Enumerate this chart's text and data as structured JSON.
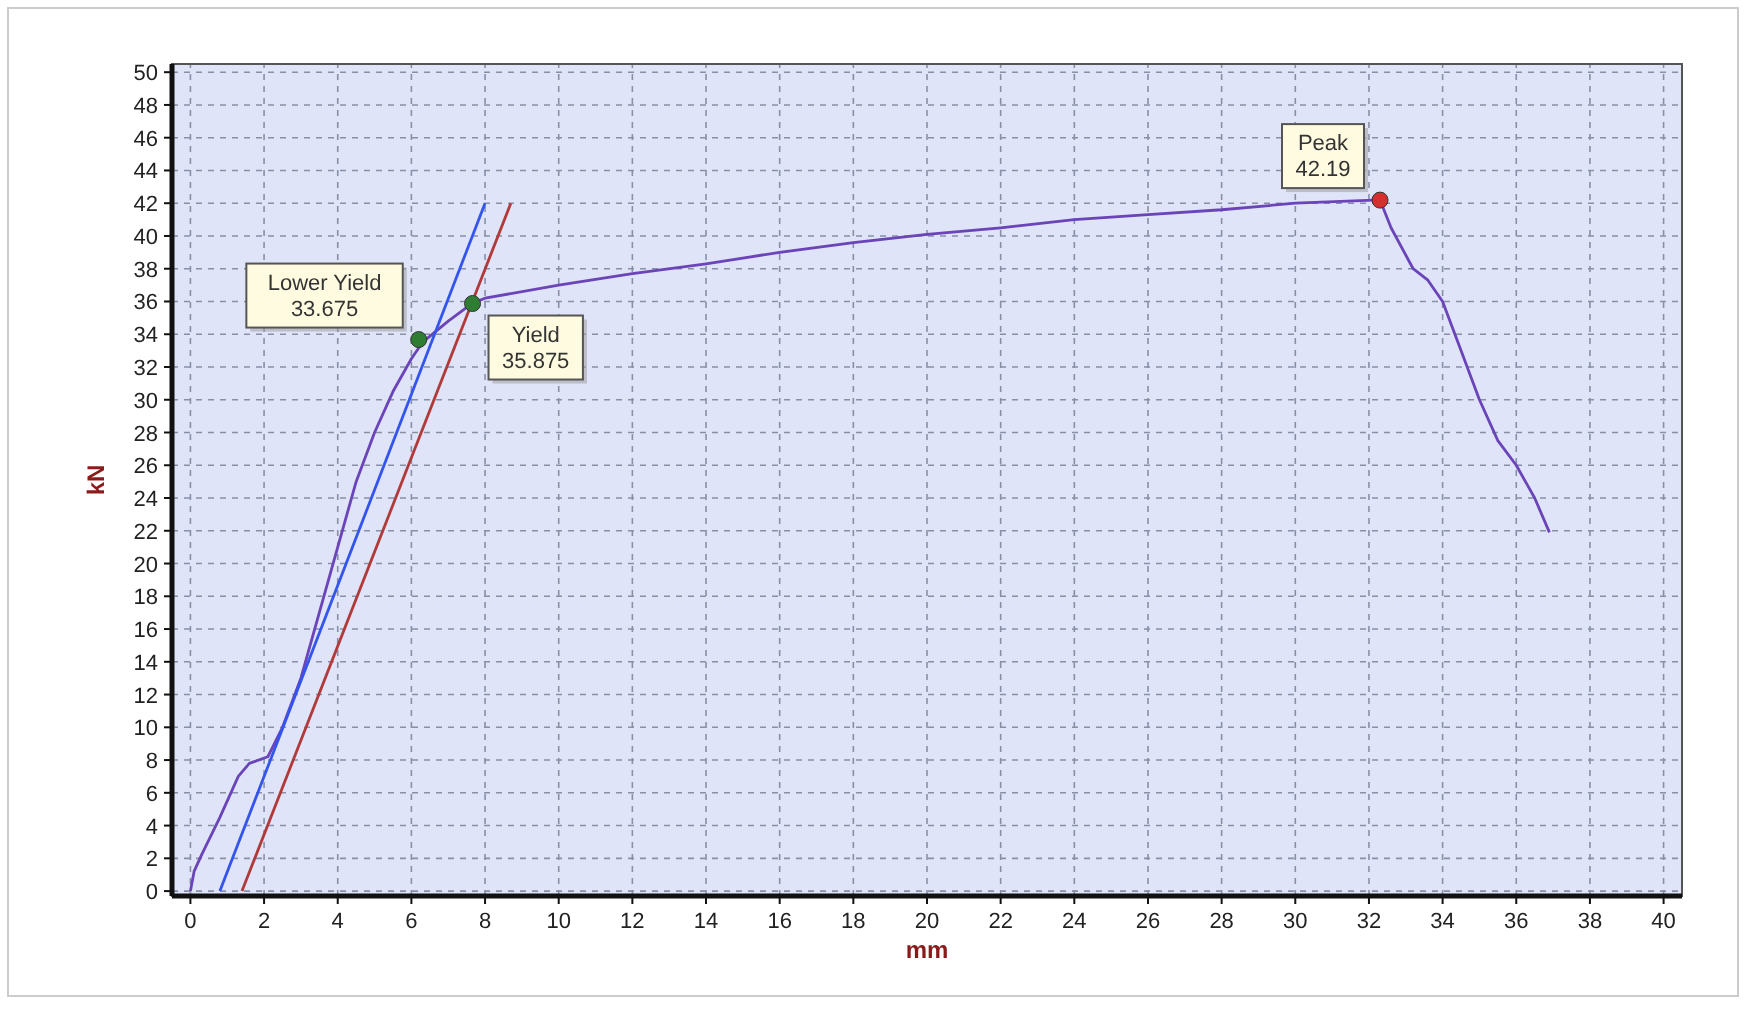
{
  "chart_data": {
    "type": "line",
    "xlabel": "mm",
    "ylabel": "kN",
    "xlim": [
      -0.5,
      40.5
    ],
    "ylim": [
      -0.3,
      50.5
    ],
    "xticks": [
      0,
      2,
      4,
      6,
      8,
      10,
      12,
      14,
      16,
      18,
      20,
      22,
      24,
      26,
      28,
      30,
      32,
      34,
      36,
      38,
      40
    ],
    "yticks": [
      0,
      2,
      4,
      6,
      8,
      10,
      12,
      14,
      16,
      18,
      20,
      22,
      24,
      26,
      28,
      30,
      32,
      34,
      36,
      38,
      40,
      42,
      44,
      46,
      48,
      50
    ],
    "grid": true,
    "marker": "none",
    "line_style": "solid",
    "series": [
      {
        "color": "#6a44b8",
        "x": [
          0,
          0.1,
          0.3,
          0.8,
          1.3,
          1.6,
          2.1,
          2.5,
          3,
          3.5,
          4,
          4.5,
          5,
          5.5,
          6,
          6.3,
          7,
          7.66,
          8,
          10,
          12,
          14,
          16,
          18,
          20,
          22,
          24,
          26,
          28,
          30,
          32.3,
          32.6,
          33.2,
          33.6,
          34,
          34.5,
          35,
          35.5,
          36,
          36.5,
          36.9
        ],
        "values": [
          0,
          1.2,
          2.2,
          4.5,
          7,
          7.8,
          8.2,
          10,
          13,
          17,
          21,
          25,
          28,
          30.5,
          32.5,
          33.5,
          34.8,
          35.9,
          36.2,
          37,
          37.7,
          38.3,
          39,
          39.6,
          40.1,
          40.5,
          41,
          41.3,
          41.6,
          42,
          42.2,
          40.5,
          38,
          37.3,
          36,
          33,
          30,
          27.5,
          26,
          24,
          21.9
        ]
      },
      {
        "color": "#3355ee",
        "x": [
          0.8,
          8
        ],
        "values": [
          0,
          42
        ]
      },
      {
        "color": "#b03a3a",
        "x": [
          1.4,
          8.7
        ],
        "values": [
          0,
          42
        ]
      },
      {
        "type": "scatter",
        "marker": "circle",
        "x": [
          6.2,
          7.66,
          32.3
        ],
        "values": [
          33.675,
          35.875,
          42.19
        ],
        "colors": [
          "#2e7d32",
          "#2e7d32",
          "#d32f2f"
        ]
      }
    ],
    "annotations": [
      {
        "text": "Lower Yield\n33.675",
        "x": 6.2,
        "y": 33.675
      },
      {
        "text": "Yield\n35.875",
        "x": 7.66,
        "y": 35.875
      },
      {
        "text": "Peak\n42.19",
        "x": 32.3,
        "y": 42.19
      }
    ]
  }
}
